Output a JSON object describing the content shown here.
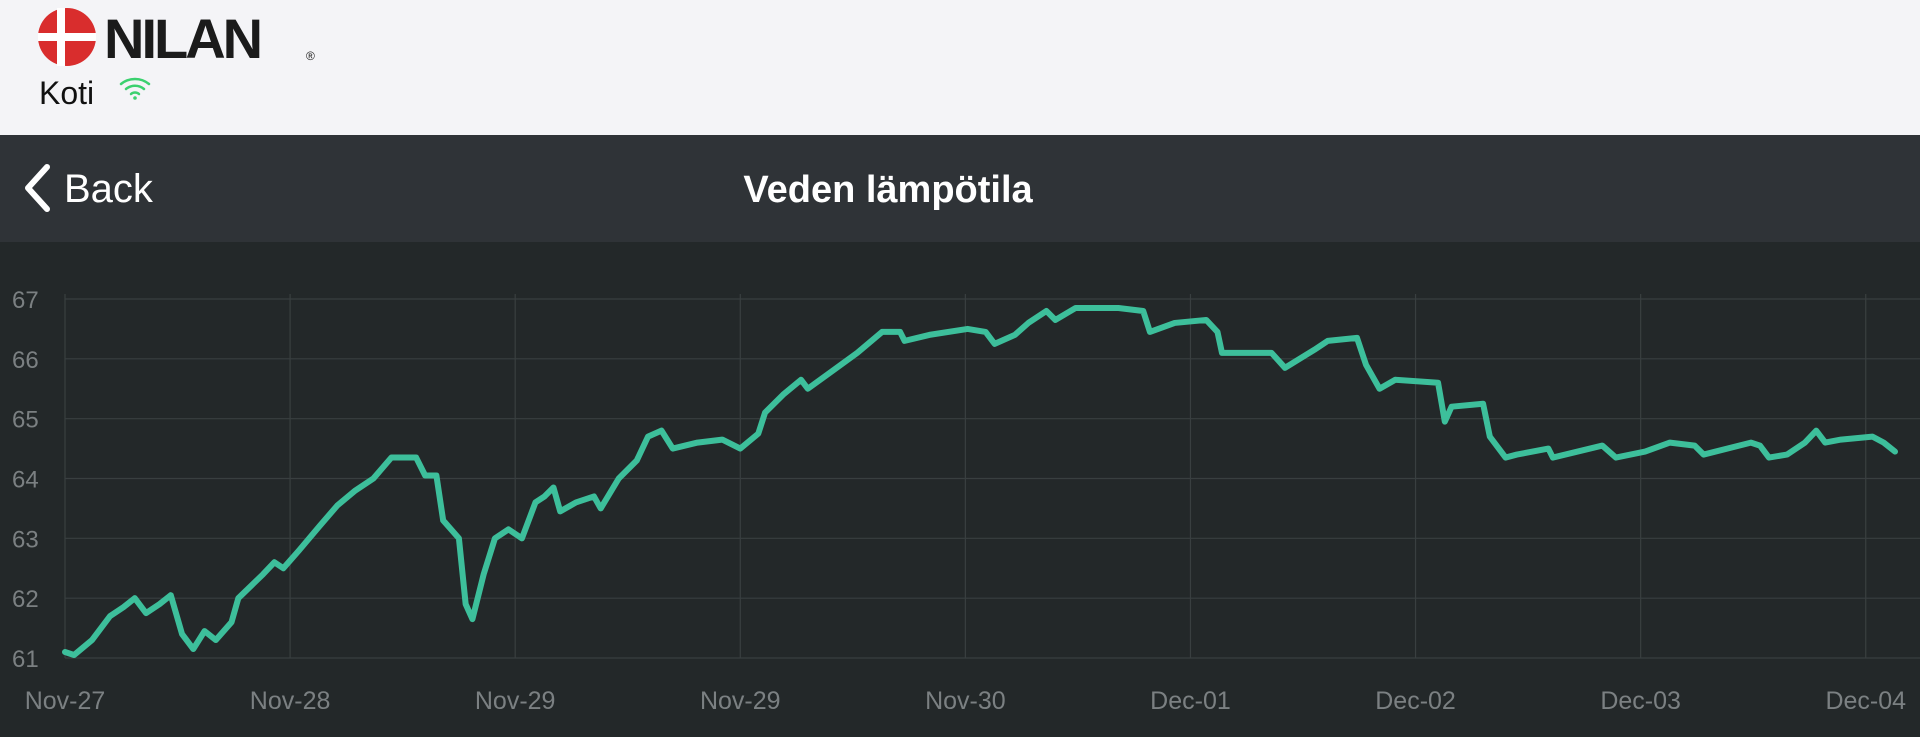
{
  "header": {
    "brand": "NILAN",
    "registered": "®",
    "location": "Koti"
  },
  "nav": {
    "back": "Back"
  },
  "chart_data": {
    "type": "line",
    "title": "Veden lämpötila",
    "x": [
      0,
      0.04,
      0.12,
      0.2,
      0.26,
      0.31,
      0.36,
      0.42,
      0.47,
      0.52,
      0.57,
      0.62,
      0.67,
      0.74,
      0.77,
      0.88,
      0.93,
      0.97,
      1.04,
      1.13,
      1.21,
      1.29,
      1.37,
      1.45,
      1.56,
      1.6,
      1.65,
      1.68,
      1.75,
      1.78,
      1.81,
      1.86,
      1.91,
      1.97,
      2.03,
      2.09,
      2.13,
      2.17,
      2.2,
      2.27,
      2.35,
      2.38,
      2.46,
      2.54,
      2.59,
      2.65,
      2.7,
      2.81,
      2.92,
      3,
      3.08,
      3.11,
      3.19,
      3.27,
      3.3,
      3.41,
      3.52,
      3.63,
      3.71,
      3.73,
      3.84,
      4.01,
      4.09,
      4.13,
      4.22,
      4.28,
      4.36,
      4.4,
      4.49,
      4.68,
      4.79,
      4.82,
      4.93,
      5.07,
      5.12,
      5.14,
      5.36,
      5.42,
      5.55,
      5.61,
      5.74,
      5.78,
      5.84,
      5.91,
      6.1,
      6.13,
      6.16,
      6.3,
      6.33,
      6.4,
      6.45,
      6.59,
      6.61,
      6.72,
      6.83,
      6.89,
      7.02,
      7.13,
      7.24,
      7.28,
      7.49,
      7.53,
      7.57,
      7.65,
      7.73,
      7.78,
      7.82,
      7.89,
      8.03,
      8.08,
      8.13
    ],
    "series": [
      {
        "color": "#3dbf9b",
        "values": [
          61.1,
          61.05,
          61.3,
          61.7,
          61.85,
          62.0,
          61.75,
          61.9,
          62.05,
          61.4,
          61.15,
          61.45,
          61.3,
          61.6,
          62.0,
          62.4,
          62.6,
          62.5,
          62.8,
          63.2,
          63.55,
          63.8,
          64.0,
          64.35,
          64.35,
          64.05,
          64.05,
          63.3,
          63.0,
          61.9,
          61.65,
          62.4,
          63.0,
          63.15,
          63.0,
          63.6,
          63.7,
          63.85,
          63.45,
          63.6,
          63.7,
          63.5,
          64.0,
          64.3,
          64.7,
          64.8,
          64.5,
          64.6,
          64.65,
          64.5,
          64.75,
          65.1,
          65.4,
          65.65,
          65.5,
          65.8,
          66.1,
          66.45,
          66.45,
          66.3,
          66.4,
          66.5,
          66.45,
          66.25,
          66.4,
          66.6,
          66.8,
          66.65,
          66.85,
          66.85,
          66.8,
          66.45,
          66.6,
          66.65,
          66.45,
          66.1,
          66.1,
          65.85,
          66.15,
          66.3,
          66.35,
          65.9,
          65.5,
          65.65,
          65.6,
          64.95,
          65.2,
          65.25,
          64.7,
          64.35,
          64.4,
          64.5,
          64.35,
          64.45,
          64.55,
          64.35,
          64.45,
          64.6,
          64.55,
          64.4,
          64.6,
          64.55,
          64.35,
          64.4,
          64.6,
          64.8,
          64.6,
          64.65,
          64.7,
          64.6,
          64.45
        ]
      }
    ],
    "xlim": [
      0,
      8.13
    ],
    "xticks": [
      {
        "value": 0,
        "label": "Nov-27"
      },
      {
        "value": 1,
        "label": "Nov-28"
      },
      {
        "value": 2,
        "label": "Nov-29"
      },
      {
        "value": 3,
        "label": "Nov-29"
      },
      {
        "value": 4,
        "label": "Nov-30"
      },
      {
        "value": 5,
        "label": "Dec-01"
      },
      {
        "value": 6,
        "label": "Dec-02"
      },
      {
        "value": 7,
        "label": "Dec-03"
      },
      {
        "value": 8,
        "label": "Dec-04"
      }
    ],
    "ylim": [
      61,
      67
    ],
    "yticks": [
      61,
      62,
      63,
      64,
      65,
      66,
      67
    ],
    "grid": true
  }
}
